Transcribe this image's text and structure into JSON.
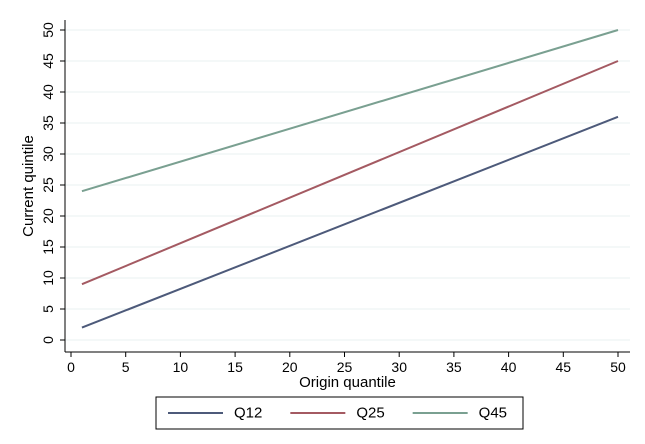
{
  "chart_data": {
    "type": "line",
    "xlabel": "Origin quantile",
    "ylabel": "Current quintile",
    "xlim": [
      1,
      50
    ],
    "ylim": [
      0,
      50
    ],
    "xticks": [
      0,
      5,
      10,
      15,
      20,
      25,
      30,
      35,
      40,
      45,
      50
    ],
    "yticks": [
      0,
      5,
      10,
      15,
      20,
      25,
      30,
      35,
      40,
      45,
      50
    ],
    "grid": true,
    "legend_position": "bottom",
    "series": [
      {
        "name": "Q12",
        "x": [
          1,
          50
        ],
        "y": [
          2,
          36
        ],
        "color": "#4d5a7a"
      },
      {
        "name": "Q25",
        "x": [
          1,
          50
        ],
        "y": [
          9,
          45
        ],
        "color": "#a45a62"
      },
      {
        "name": "Q45",
        "x": [
          1,
          50
        ],
        "y": [
          24,
          50
        ],
        "color": "#7aa091"
      }
    ]
  }
}
